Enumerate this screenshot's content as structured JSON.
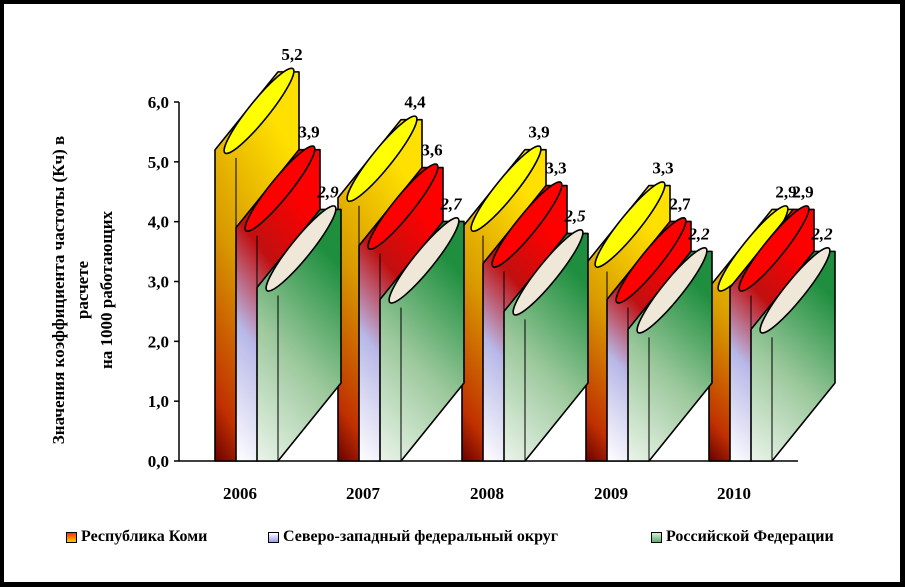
{
  "chart_data": {
    "type": "bar",
    "style": "3d-cylinder",
    "categories": [
      "2006",
      "2007",
      "2008",
      "2009",
      "2010"
    ],
    "series": [
      {
        "name": "Республика Коми",
        "values": [
          5.2,
          4.4,
          3.9,
          3.3,
          2.9
        ],
        "labels": [
          "5,2",
          "4,4",
          "3,9",
          "3,3",
          "2,9"
        ],
        "label_style": "bold",
        "color_top": "#ffff00",
        "color_body": "#e0b000"
      },
      {
        "name": "Северо-западный федеральный округ",
        "values": [
          3.9,
          3.6,
          3.3,
          2.7,
          2.9
        ],
        "labels": [
          "3,9",
          "3,6",
          "3,3",
          "2,7",
          "2,9"
        ],
        "label_style": "bold",
        "color_top": "#ff0000",
        "color_body": "#cc1010"
      },
      {
        "name": "Российской Федерации",
        "values": [
          2.9,
          2.7,
          2.5,
          2.2,
          2.2
        ],
        "labels": [
          "2,9",
          "2,7",
          "2,5",
          "2,2",
          "2,2"
        ],
        "label_style": "bold-italic",
        "color_top": "#efe8d8",
        "color_body": "#5cae6c"
      }
    ],
    "ylabel_lines": [
      "Значения коэффициента частоты (Кч)  в",
      "расчете",
      "на 1000 работающих"
    ],
    "ylim": [
      0,
      6
    ],
    "yticks": [
      "0,0",
      "1,0",
      "2,0",
      "3,0",
      "4,0",
      "5,0",
      "6,0"
    ],
    "ytick_values": [
      0,
      1,
      2,
      3,
      4,
      5,
      6
    ],
    "legend_position": "bottom",
    "grid": false
  }
}
